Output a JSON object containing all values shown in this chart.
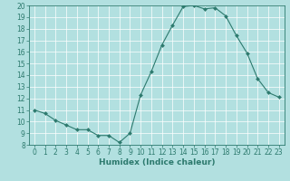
{
  "x": [
    0,
    1,
    2,
    3,
    4,
    5,
    6,
    7,
    8,
    9,
    10,
    11,
    12,
    13,
    14,
    15,
    16,
    17,
    18,
    19,
    20,
    21,
    22,
    23
  ],
  "y": [
    11.0,
    10.7,
    10.1,
    9.7,
    9.3,
    9.3,
    8.8,
    8.8,
    8.2,
    9.0,
    12.3,
    14.3,
    16.6,
    18.3,
    19.9,
    20.0,
    19.7,
    19.8,
    19.1,
    17.4,
    15.9,
    13.7,
    12.5,
    12.1
  ],
  "line_color": "#2d7a6e",
  "marker": "D",
  "marker_size": 2.0,
  "bg_color": "#b2e0e0",
  "grid_color": "#ffffff",
  "xlabel": "Humidex (Indice chaleur)",
  "xlim": [
    -0.5,
    23.5
  ],
  "ylim": [
    8,
    20
  ],
  "yticks": [
    8,
    9,
    10,
    11,
    12,
    13,
    14,
    15,
    16,
    17,
    18,
    19,
    20
  ],
  "xticks": [
    0,
    1,
    2,
    3,
    4,
    5,
    6,
    7,
    8,
    9,
    10,
    11,
    12,
    13,
    14,
    15,
    16,
    17,
    18,
    19,
    20,
    21,
    22,
    23
  ],
  "tick_color": "#2d7a6e",
  "label_fontsize": 6.5,
  "tick_fontsize": 5.5
}
